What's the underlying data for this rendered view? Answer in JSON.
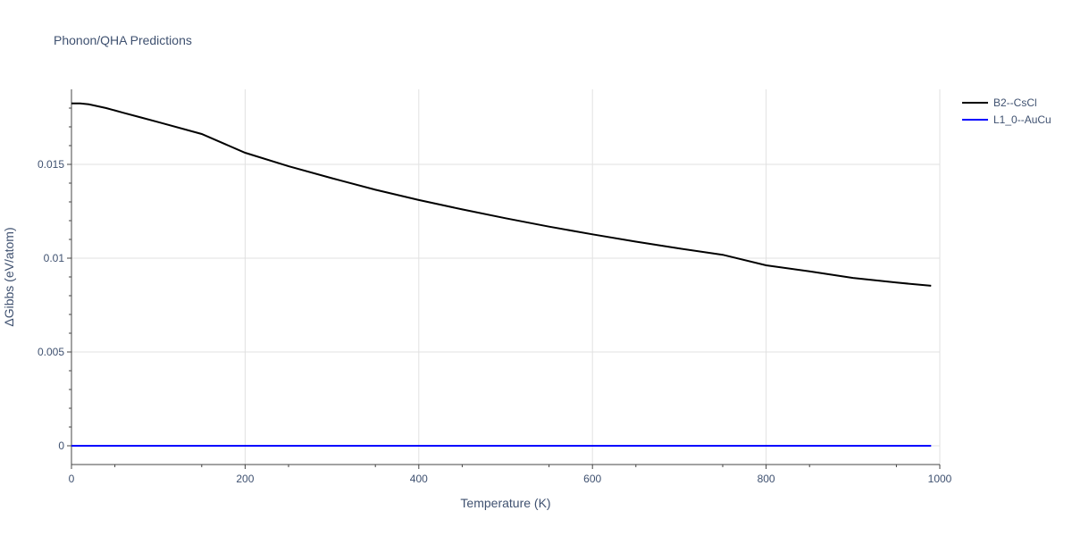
{
  "chart_data": {
    "type": "line",
    "title": "Phonon/QHA Predictions",
    "xlabel": "Temperature (K)",
    "ylabel": "ΔGibbs (eV/atom)",
    "xlim": [
      0,
      1000
    ],
    "ylim": [
      -0.001,
      0.019
    ],
    "xticks": [
      0,
      200,
      400,
      600,
      800,
      1000
    ],
    "xtick_labels": [
      "0",
      "200",
      "400",
      "600",
      "800",
      "1000"
    ],
    "yticks": [
      0,
      0.005,
      0.01,
      0.015
    ],
    "ytick_labels": [
      "0",
      "0.005",
      "0.01",
      "0.015"
    ],
    "grid": true,
    "legend_position": "top-right",
    "series": [
      {
        "name": "B2--CsCl",
        "color": "#000000",
        "x": [
          0,
          10,
          20,
          30,
          40,
          60,
          80,
          100,
          150,
          200,
          250,
          300,
          350,
          400,
          450,
          500,
          550,
          600,
          650,
          700,
          750,
          800,
          850,
          900,
          950,
          990
        ],
        "y": [
          0.01825,
          0.01825,
          0.0182,
          0.0181,
          0.018,
          0.01775,
          0.0175,
          0.01725,
          0.01662,
          0.01562,
          0.0149,
          0.01426,
          0.01365,
          0.0131,
          0.0126,
          0.01213,
          0.01168,
          0.01127,
          0.01088,
          0.01052,
          0.01018,
          0.00962,
          0.0093,
          0.00895,
          0.0087,
          0.00853
        ]
      },
      {
        "name": "L1_0--AuCu",
        "color": "#0000ff",
        "x": [
          0,
          990
        ],
        "y": [
          0,
          0
        ]
      }
    ]
  }
}
